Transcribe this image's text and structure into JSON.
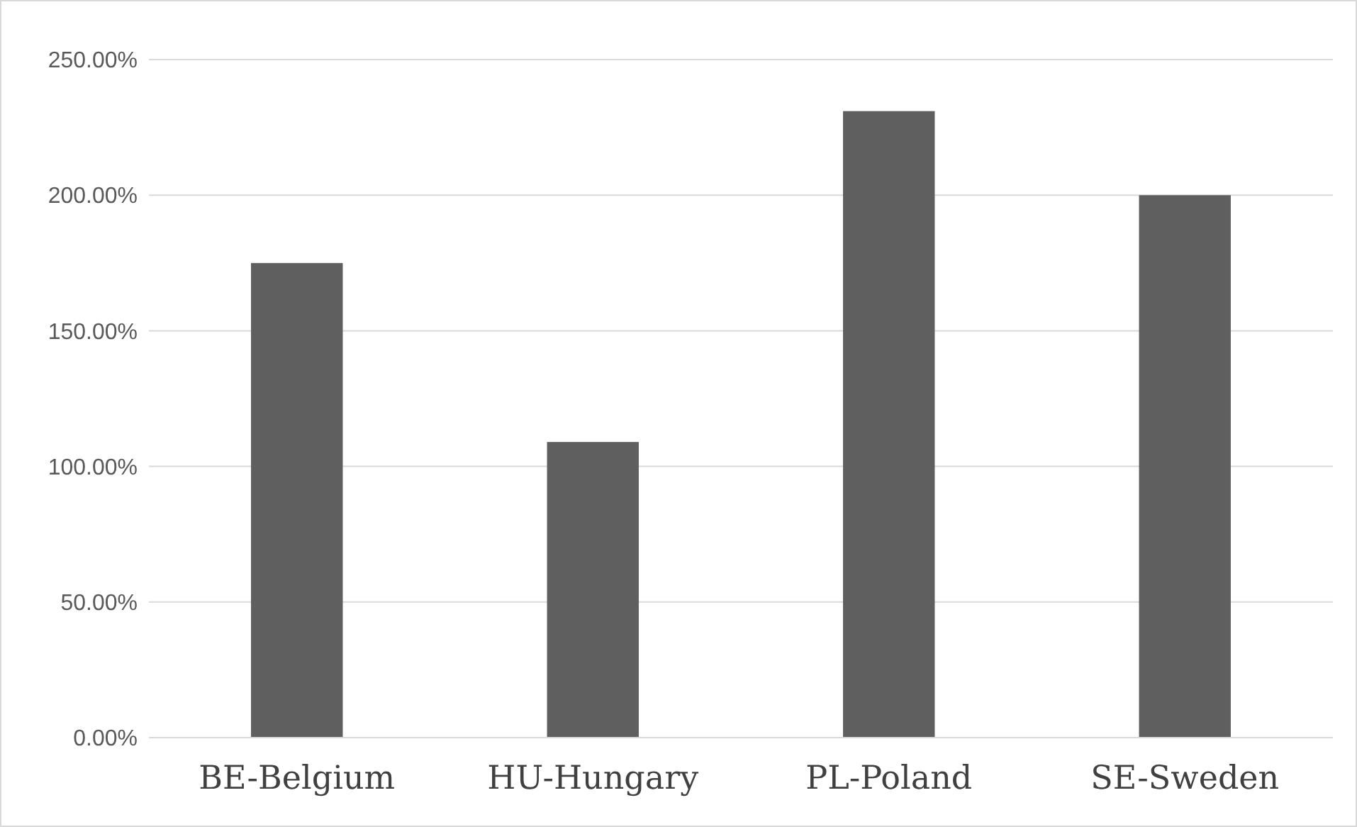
{
  "chart_data": {
    "type": "bar",
    "categories": [
      "BE-Belgium",
      "HU-Hungary",
      "PL-Poland",
      "SE-Sweden"
    ],
    "values": [
      175,
      109,
      231,
      200
    ],
    "color": "#5f5f5f",
    "ylim": [
      0,
      250
    ],
    "yticks": [
      {
        "value": 0,
        "label": "0.00%"
      },
      {
        "value": 50,
        "label": "50.00%"
      },
      {
        "value": 100,
        "label": "100.00%"
      },
      {
        "value": 150,
        "label": "150.00%"
      },
      {
        "value": 200,
        "label": "200.00%"
      },
      {
        "value": 250,
        "label": "250.00%"
      }
    ],
    "grid": "y"
  }
}
